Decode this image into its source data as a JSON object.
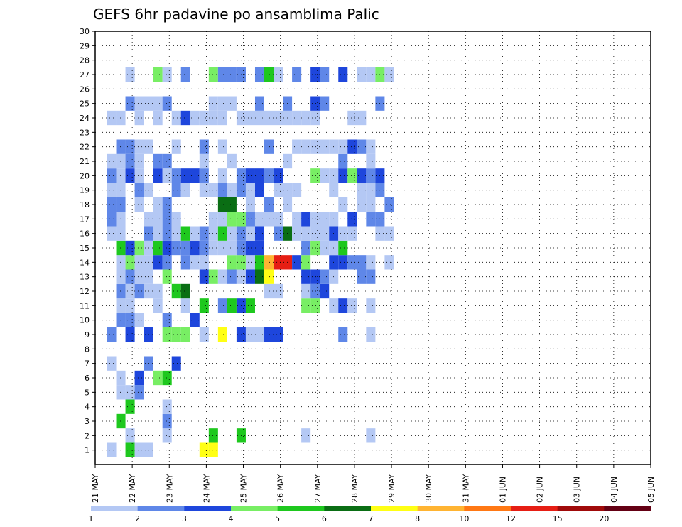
{
  "chart_data": {
    "type": "heatmap",
    "title": "GEFS 6hr padavine po ansamblima Palic",
    "xlabel": "",
    "ylabel": "",
    "x_ticks": [
      "21 MAY",
      "22 MAY",
      "23 MAY",
      "24 MAY",
      "25 MAY",
      "26 MAY",
      "27 MAY",
      "28 MAY",
      "29 MAY",
      "30 MAY",
      "31 MAY",
      "01 JUN",
      "02 JUN",
      "03 JUN",
      "04 JUN",
      "05 JUN"
    ],
    "y_ticks": [
      "1",
      "2",
      "3",
      "4",
      "5",
      "6",
      "7",
      "8",
      "9",
      "10",
      "11",
      "12",
      "13",
      "14",
      "15",
      "16",
      "17",
      "18",
      "19",
      "20",
      "21",
      "22",
      "23",
      "24",
      "25",
      "26",
      "27",
      "28",
      "29",
      "30"
    ],
    "ylim": [
      1,
      30
    ],
    "grid": true,
    "colorbar": {
      "levels": [
        "1",
        "2",
        "3",
        "4",
        "5",
        "6",
        "7",
        "8",
        "10",
        "12",
        "15",
        "20"
      ],
      "colors": [
        "#b4c8f4",
        "#5f87e8",
        "#1e46dc",
        "#78ee64",
        "#1ec81e",
        "#0a6e14",
        "#ffff14",
        "#ffb432",
        "#ff7814",
        "#e61e14",
        "#a00a0a",
        "#640014"
      ]
    },
    "cells": [
      [
        0,
        1,
        0
      ],
      [
        2,
        1,
        4
      ],
      [
        3,
        1,
        0
      ],
      [
        4,
        1,
        0
      ],
      [
        10,
        1,
        6
      ],
      [
        11,
        1,
        6
      ],
      [
        2,
        2,
        0
      ],
      [
        6,
        2,
        0
      ],
      [
        11,
        2,
        4
      ],
      [
        14,
        2,
        4
      ],
      [
        21,
        2,
        0
      ],
      [
        28,
        2,
        0
      ],
      [
        1,
        3,
        4
      ],
      [
        6,
        3,
        1
      ],
      [
        2,
        4,
        4
      ],
      [
        6,
        4,
        0
      ],
      [
        1,
        5,
        0
      ],
      [
        2,
        5,
        0
      ],
      [
        3,
        5,
        1
      ],
      [
        1,
        6,
        0
      ],
      [
        3,
        6,
        2
      ],
      [
        5,
        6,
        3
      ],
      [
        6,
        6,
        4
      ],
      [
        0,
        7,
        0
      ],
      [
        4,
        7,
        1
      ],
      [
        7,
        7,
        2
      ],
      [
        0,
        9,
        1
      ],
      [
        2,
        9,
        2
      ],
      [
        4,
        9,
        2
      ],
      [
        6,
        9,
        3
      ],
      [
        7,
        9,
        3
      ],
      [
        8,
        9,
        3
      ],
      [
        10,
        9,
        0
      ],
      [
        12,
        9,
        6
      ],
      [
        14,
        9,
        2
      ],
      [
        15,
        9,
        0
      ],
      [
        16,
        9,
        0
      ],
      [
        17,
        9,
        2
      ],
      [
        18,
        9,
        2
      ],
      [
        25,
        9,
        1
      ],
      [
        28,
        9,
        0
      ],
      [
        1,
        10,
        1
      ],
      [
        2,
        10,
        1
      ],
      [
        3,
        10,
        0
      ],
      [
        6,
        10,
        1
      ],
      [
        9,
        10,
        2
      ],
      [
        1,
        11,
        0
      ],
      [
        2,
        11,
        0
      ],
      [
        5,
        11,
        0
      ],
      [
        8,
        11,
        0
      ],
      [
        10,
        11,
        4
      ],
      [
        12,
        11,
        1
      ],
      [
        13,
        11,
        4
      ],
      [
        14,
        11,
        2
      ],
      [
        15,
        11,
        4
      ],
      [
        21,
        11,
        3
      ],
      [
        22,
        11,
        3
      ],
      [
        24,
        11,
        0
      ],
      [
        25,
        11,
        2
      ],
      [
        26,
        11,
        0
      ],
      [
        28,
        11,
        0
      ],
      [
        1,
        12,
        1
      ],
      [
        2,
        12,
        0
      ],
      [
        3,
        12,
        1
      ],
      [
        4,
        12,
        0
      ],
      [
        5,
        12,
        0
      ],
      [
        7,
        12,
        4
      ],
      [
        8,
        12,
        5
      ],
      [
        17,
        12,
        0
      ],
      [
        18,
        12,
        0
      ],
      [
        21,
        12,
        0
      ],
      [
        22,
        12,
        1
      ],
      [
        23,
        12,
        2
      ],
      [
        1,
        13,
        0
      ],
      [
        2,
        13,
        1
      ],
      [
        3,
        13,
        0
      ],
      [
        4,
        13,
        0
      ],
      [
        6,
        13,
        3
      ],
      [
        10,
        13,
        2
      ],
      [
        11,
        13,
        3
      ],
      [
        12,
        13,
        0
      ],
      [
        13,
        13,
        1
      ],
      [
        14,
        13,
        0
      ],
      [
        15,
        13,
        2
      ],
      [
        16,
        13,
        5
      ],
      [
        17,
        13,
        6
      ],
      [
        21,
        13,
        2
      ],
      [
        22,
        13,
        2
      ],
      [
        23,
        13,
        1
      ],
      [
        24,
        13,
        0
      ],
      [
        27,
        13,
        1
      ],
      [
        28,
        13,
        1
      ],
      [
        1,
        14,
        0
      ],
      [
        2,
        14,
        3
      ],
      [
        3,
        14,
        0
      ],
      [
        4,
        14,
        0
      ],
      [
        5,
        14,
        2
      ],
      [
        6,
        14,
        1
      ],
      [
        8,
        14,
        1
      ],
      [
        9,
        14,
        0
      ],
      [
        10,
        14,
        0
      ],
      [
        13,
        14,
        3
      ],
      [
        14,
        14,
        3
      ],
      [
        15,
        14,
        0
      ],
      [
        16,
        14,
        4
      ],
      [
        17,
        14,
        7
      ],
      [
        18,
        14,
        9
      ],
      [
        19,
        14,
        9
      ],
      [
        20,
        14,
        2
      ],
      [
        21,
        14,
        3
      ],
      [
        24,
        14,
        2
      ],
      [
        25,
        14,
        2
      ],
      [
        26,
        14,
        1
      ],
      [
        27,
        14,
        1
      ],
      [
        28,
        14,
        0
      ],
      [
        30,
        14,
        0
      ],
      [
        1,
        15,
        4
      ],
      [
        2,
        15,
        2
      ],
      [
        3,
        15,
        3
      ],
      [
        4,
        15,
        0
      ],
      [
        5,
        15,
        4
      ],
      [
        6,
        15,
        2
      ],
      [
        7,
        15,
        1
      ],
      [
        8,
        15,
        1
      ],
      [
        9,
        15,
        2
      ],
      [
        10,
        15,
        1
      ],
      [
        11,
        15,
        0
      ],
      [
        12,
        15,
        0
      ],
      [
        13,
        15,
        0
      ],
      [
        14,
        15,
        1
      ],
      [
        15,
        15,
        2
      ],
      [
        16,
        15,
        2
      ],
      [
        21,
        15,
        1
      ],
      [
        22,
        15,
        3
      ],
      [
        23,
        15,
        0
      ],
      [
        24,
        15,
        0
      ],
      [
        25,
        15,
        4
      ],
      [
        0,
        16,
        0
      ],
      [
        1,
        16,
        0
      ],
      [
        4,
        16,
        1
      ],
      [
        5,
        16,
        0
      ],
      [
        6,
        16,
        1
      ],
      [
        7,
        16,
        0
      ],
      [
        8,
        16,
        4
      ],
      [
        9,
        16,
        0
      ],
      [
        10,
        16,
        1
      ],
      [
        11,
        16,
        0
      ],
      [
        12,
        16,
        4
      ],
      [
        13,
        16,
        0
      ],
      [
        14,
        16,
        1
      ],
      [
        15,
        16,
        0
      ],
      [
        16,
        16,
        2
      ],
      [
        18,
        16,
        1
      ],
      [
        19,
        16,
        5
      ],
      [
        20,
        16,
        0
      ],
      [
        21,
        16,
        0
      ],
      [
        22,
        16,
        0
      ],
      [
        23,
        16,
        0
      ],
      [
        24,
        16,
        2
      ],
      [
        25,
        16,
        0
      ],
      [
        26,
        16,
        0
      ],
      [
        29,
        16,
        0
      ],
      [
        30,
        16,
        0
      ],
      [
        0,
        17,
        1
      ],
      [
        1,
        17,
        0
      ],
      [
        4,
        17,
        0
      ],
      [
        5,
        17,
        0
      ],
      [
        6,
        17,
        1
      ],
      [
        7,
        17,
        0
      ],
      [
        11,
        17,
        0
      ],
      [
        12,
        17,
        0
      ],
      [
        13,
        17,
        3
      ],
      [
        14,
        17,
        3
      ],
      [
        15,
        17,
        1
      ],
      [
        16,
        17,
        0
      ],
      [
        17,
        17,
        0
      ],
      [
        18,
        17,
        0
      ],
      [
        20,
        17,
        0
      ],
      [
        21,
        17,
        2
      ],
      [
        22,
        17,
        0
      ],
      [
        23,
        17,
        0
      ],
      [
        24,
        17,
        0
      ],
      [
        26,
        17,
        2
      ],
      [
        28,
        17,
        1
      ],
      [
        29,
        17,
        1
      ],
      [
        0,
        18,
        1
      ],
      [
        1,
        18,
        1
      ],
      [
        3,
        18,
        0
      ],
      [
        5,
        18,
        0
      ],
      [
        6,
        18,
        1
      ],
      [
        12,
        18,
        5
      ],
      [
        13,
        18,
        5
      ],
      [
        15,
        18,
        0
      ],
      [
        17,
        18,
        1
      ],
      [
        19,
        18,
        0
      ],
      [
        25,
        18,
        0
      ],
      [
        27,
        18,
        0
      ],
      [
        28,
        18,
        0
      ],
      [
        30,
        18,
        1
      ],
      [
        0,
        19,
        0
      ],
      [
        1,
        19,
        0
      ],
      [
        3,
        19,
        1
      ],
      [
        4,
        19,
        0
      ],
      [
        7,
        19,
        1
      ],
      [
        8,
        19,
        0
      ],
      [
        10,
        19,
        0
      ],
      [
        11,
        19,
        0
      ],
      [
        12,
        19,
        1
      ],
      [
        13,
        19,
        0
      ],
      [
        14,
        19,
        1
      ],
      [
        15,
        19,
        0
      ],
      [
        16,
        19,
        2
      ],
      [
        18,
        19,
        0
      ],
      [
        19,
        19,
        0
      ],
      [
        20,
        19,
        0
      ],
      [
        24,
        19,
        0
      ],
      [
        27,
        19,
        0
      ],
      [
        28,
        19,
        0
      ],
      [
        29,
        19,
        1
      ],
      [
        0,
        20,
        1
      ],
      [
        1,
        20,
        0
      ],
      [
        2,
        20,
        2
      ],
      [
        3,
        20,
        0
      ],
      [
        5,
        20,
        2
      ],
      [
        6,
        20,
        0
      ],
      [
        7,
        20,
        1
      ],
      [
        8,
        20,
        2
      ],
      [
        9,
        20,
        2
      ],
      [
        10,
        20,
        1
      ],
      [
        12,
        20,
        0
      ],
      [
        14,
        20,
        1
      ],
      [
        15,
        20,
        2
      ],
      [
        16,
        20,
        2
      ],
      [
        17,
        20,
        1
      ],
      [
        18,
        20,
        2
      ],
      [
        22,
        20,
        3
      ],
      [
        23,
        20,
        0
      ],
      [
        24,
        20,
        0
      ],
      [
        25,
        20,
        2
      ],
      [
        26,
        20,
        3
      ],
      [
        27,
        20,
        2
      ],
      [
        28,
        20,
        1
      ],
      [
        29,
        20,
        2
      ],
      [
        0,
        21,
        0
      ],
      [
        1,
        21,
        0
      ],
      [
        2,
        21,
        1
      ],
      [
        3,
        21,
        0
      ],
      [
        5,
        21,
        1
      ],
      [
        6,
        21,
        1
      ],
      [
        10,
        21,
        0
      ],
      [
        13,
        21,
        0
      ],
      [
        19,
        21,
        0
      ],
      [
        25,
        21,
        1
      ],
      [
        28,
        21,
        0
      ],
      [
        1,
        22,
        1
      ],
      [
        2,
        22,
        1
      ],
      [
        3,
        22,
        0
      ],
      [
        4,
        22,
        0
      ],
      [
        7,
        22,
        0
      ],
      [
        10,
        22,
        1
      ],
      [
        12,
        22,
        0
      ],
      [
        17,
        22,
        1
      ],
      [
        20,
        22,
        0
      ],
      [
        21,
        22,
        0
      ],
      [
        22,
        22,
        0
      ],
      [
        23,
        22,
        0
      ],
      [
        24,
        22,
        0
      ],
      [
        25,
        22,
        0
      ],
      [
        26,
        22,
        2
      ],
      [
        27,
        22,
        1
      ],
      [
        28,
        22,
        0
      ],
      [
        0,
        24,
        0
      ],
      [
        1,
        24,
        0
      ],
      [
        3,
        24,
        0
      ],
      [
        5,
        24,
        0
      ],
      [
        7,
        24,
        0
      ],
      [
        8,
        24,
        2
      ],
      [
        9,
        24,
        0
      ],
      [
        10,
        24,
        0
      ],
      [
        11,
        24,
        0
      ],
      [
        12,
        24,
        0
      ],
      [
        14,
        24,
        0
      ],
      [
        15,
        24,
        0
      ],
      [
        16,
        24,
        0
      ],
      [
        17,
        24,
        0
      ],
      [
        18,
        24,
        0
      ],
      [
        19,
        24,
        0
      ],
      [
        20,
        24,
        0
      ],
      [
        21,
        24,
        0
      ],
      [
        22,
        24,
        0
      ],
      [
        26,
        24,
        0
      ],
      [
        27,
        24,
        0
      ],
      [
        2,
        25,
        1
      ],
      [
        3,
        25,
        0
      ],
      [
        4,
        25,
        0
      ],
      [
        5,
        25,
        0
      ],
      [
        6,
        25,
        1
      ],
      [
        11,
        25,
        0
      ],
      [
        12,
        25,
        0
      ],
      [
        13,
        25,
        0
      ],
      [
        16,
        25,
        1
      ],
      [
        19,
        25,
        1
      ],
      [
        22,
        25,
        2
      ],
      [
        23,
        25,
        1
      ],
      [
        29,
        25,
        1
      ],
      [
        2,
        27,
        0
      ],
      [
        5,
        27,
        3
      ],
      [
        6,
        27,
        0
      ],
      [
        8,
        27,
        1
      ],
      [
        11,
        27,
        3
      ],
      [
        12,
        27,
        1
      ],
      [
        13,
        27,
        1
      ],
      [
        14,
        27,
        1
      ],
      [
        16,
        27,
        1
      ],
      [
        17,
        27,
        4
      ],
      [
        18,
        27,
        0
      ],
      [
        20,
        27,
        1
      ],
      [
        22,
        27,
        2
      ],
      [
        23,
        27,
        1
      ],
      [
        25,
        27,
        2
      ],
      [
        27,
        27,
        0
      ],
      [
        28,
        27,
        0
      ],
      [
        29,
        27,
        3
      ],
      [
        30,
        27,
        0
      ]
    ]
  }
}
